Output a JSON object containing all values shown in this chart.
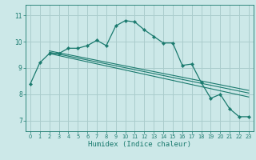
{
  "xlabel": "Humidex (Indice chaleur)",
  "bg_color": "#cce8e8",
  "grid_color": "#aacccc",
  "line_color": "#1a7a6e",
  "x_ticks": [
    0,
    1,
    2,
    3,
    4,
    5,
    6,
    7,
    8,
    9,
    10,
    11,
    12,
    13,
    14,
    15,
    16,
    17,
    18,
    19,
    20,
    21,
    22,
    23
  ],
  "y_ticks": [
    7,
    8,
    9,
    10,
    11
  ],
  "ylim": [
    6.6,
    11.4
  ],
  "xlim": [
    -0.5,
    23.5
  ],
  "main_line": [
    [
      0,
      8.4
    ],
    [
      1,
      9.2
    ],
    [
      2,
      9.55
    ],
    [
      3,
      9.55
    ],
    [
      4,
      9.75
    ],
    [
      5,
      9.75
    ],
    [
      6,
      9.85
    ],
    [
      7,
      10.05
    ],
    [
      8,
      9.85
    ],
    [
      9,
      10.6
    ],
    [
      10,
      10.8
    ],
    [
      11,
      10.75
    ],
    [
      12,
      10.45
    ],
    [
      13,
      10.2
    ],
    [
      14,
      9.95
    ],
    [
      15,
      9.95
    ],
    [
      16,
      9.1
    ],
    [
      17,
      9.15
    ],
    [
      18,
      8.45
    ],
    [
      19,
      7.85
    ],
    [
      20,
      8.0
    ],
    [
      21,
      7.45
    ],
    [
      22,
      7.15
    ],
    [
      23,
      7.15
    ]
  ],
  "regression_line1": [
    [
      2,
      9.55
    ],
    [
      23,
      7.9
    ]
  ],
  "regression_line2": [
    [
      2,
      9.6
    ],
    [
      23,
      8.05
    ]
  ],
  "regression_line3": [
    [
      2,
      9.65
    ],
    [
      23,
      8.15
    ]
  ]
}
